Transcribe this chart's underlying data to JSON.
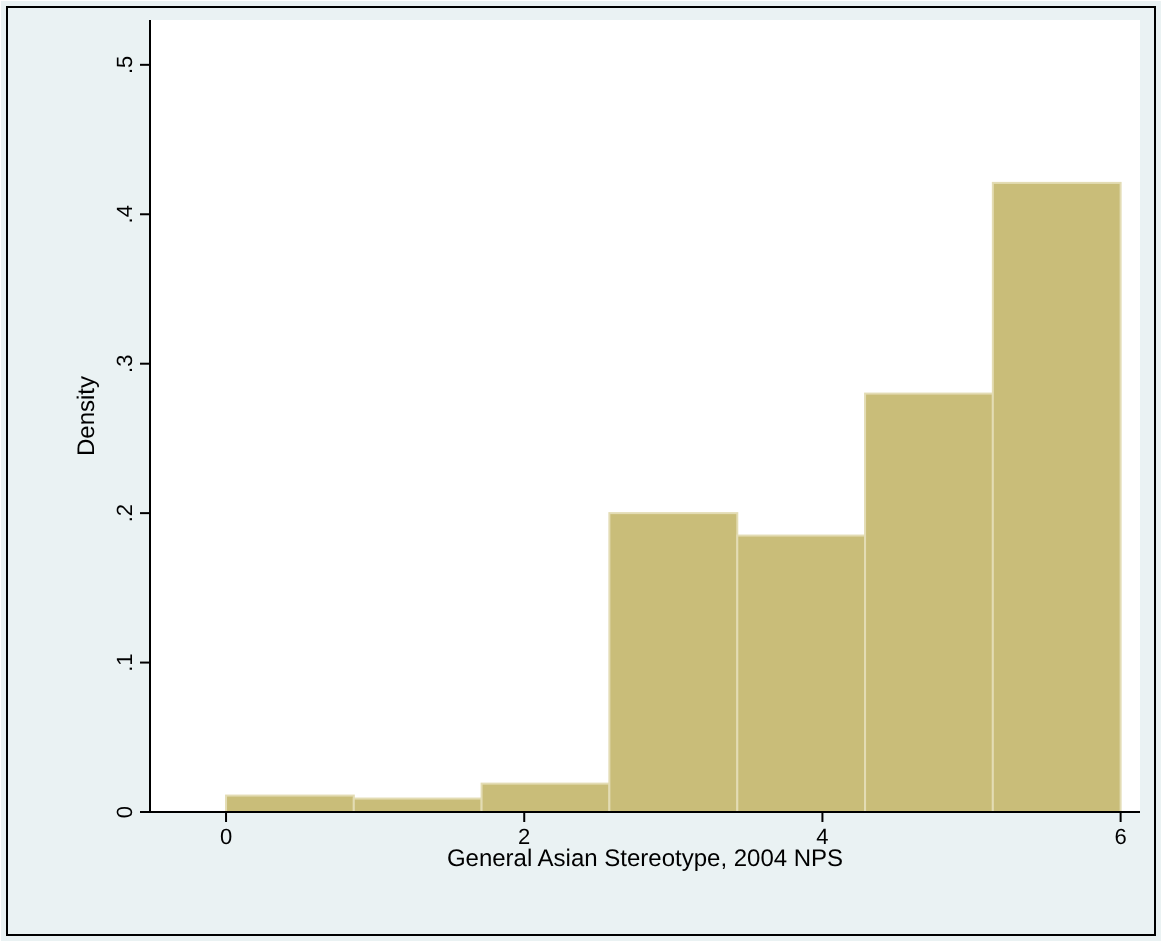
{
  "chart_data": {
    "type": "histogram",
    "xlabel": "General Asian Stereotype, 2004 NPS",
    "ylabel": "Density",
    "bins": [
      0,
      0.857,
      1.714,
      2.571,
      3.429,
      4.286,
      5.143,
      6
    ],
    "values": [
      0.011,
      0.009,
      0.019,
      0.2,
      0.185,
      0.28,
      0.421
    ],
    "color": "#c9bd79",
    "xlim": [
      -0.51,
      6.13
    ],
    "ylim": [
      0,
      0.53
    ],
    "xticks": [
      0,
      2,
      4,
      6
    ],
    "yticks": [
      0,
      {
        "value": 0.1,
        "label": ".1"
      },
      {
        "value": 0.2,
        "label": ".2"
      },
      {
        "value": 0.3,
        "label": ".3"
      },
      {
        "value": 0.4,
        "label": ".4"
      },
      {
        "value": 0.5,
        "label": ".5"
      }
    ],
    "grid": false
  }
}
